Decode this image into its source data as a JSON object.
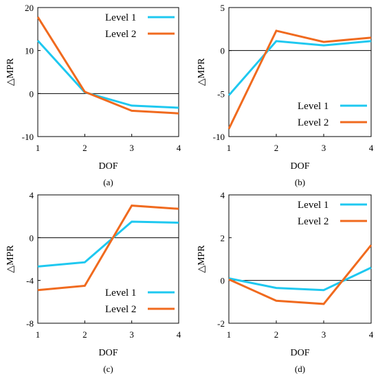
{
  "colors": {
    "level1": "#1ec8f0",
    "level2": "#f06a1e",
    "axis": "#000000"
  },
  "chart_data": [
    {
      "panel_label": "(a)",
      "type": "line",
      "x": [
        1,
        2,
        3,
        4
      ],
      "xlabel": "DOF",
      "ylabel": "△MPR",
      "ylim": [
        -10,
        20
      ],
      "yticks": [
        "-10",
        "0",
        "10",
        "20"
      ],
      "ytick_values": [
        -10,
        0,
        10,
        20
      ],
      "xticks": [
        "1",
        "2",
        "3",
        "4"
      ],
      "legend_position": "top-right",
      "series": [
        {
          "name": "Level 1",
          "values": [
            12.3,
            0.3,
            -2.8,
            -3.3
          ]
        },
        {
          "name": "Level 2",
          "values": [
            17.8,
            0.4,
            -4.0,
            -4.6
          ]
        }
      ]
    },
    {
      "panel_label": "(b)",
      "type": "line",
      "x": [
        1,
        2,
        3,
        4
      ],
      "xlabel": "DOF",
      "ylabel": "△MPR",
      "ylim": [
        -10,
        5
      ],
      "yticks": [
        "-10",
        "-5",
        "0",
        "5"
      ],
      "ytick_values": [
        -10,
        -5,
        0,
        5
      ],
      "xticks": [
        "1",
        "2",
        "3",
        "4"
      ],
      "legend_position": "bottom-right",
      "series": [
        {
          "name": "Level 1",
          "values": [
            -5.2,
            1.1,
            0.6,
            1.1
          ]
        },
        {
          "name": "Level 2",
          "values": [
            -9.1,
            2.3,
            1.0,
            1.5
          ]
        }
      ]
    },
    {
      "panel_label": "(c)",
      "type": "line",
      "x": [
        1,
        2,
        3,
        4
      ],
      "xlabel": "DOF",
      "ylabel": "△MPR",
      "ylim": [
        -8,
        4
      ],
      "yticks": [
        "-8",
        "-4",
        "0",
        "4"
      ],
      "ytick_values": [
        -8,
        -4,
        0,
        4
      ],
      "xticks": [
        "1",
        "2",
        "3",
        "4"
      ],
      "legend_position": "bottom-right",
      "series": [
        {
          "name": "Level 1",
          "values": [
            -2.7,
            -2.3,
            1.5,
            1.4
          ]
        },
        {
          "name": "Level 2",
          "values": [
            -4.9,
            -4.5,
            3.0,
            2.7
          ]
        }
      ]
    },
    {
      "panel_label": "(d)",
      "type": "line",
      "x": [
        1,
        2,
        3,
        4
      ],
      "xlabel": "DOF",
      "ylabel": "△MPR",
      "ylim": [
        -2,
        4
      ],
      "yticks": [
        "-2",
        "0",
        "2",
        "4"
      ],
      "ytick_values": [
        -2,
        0,
        2,
        4
      ],
      "xticks": [
        "1",
        "2",
        "3",
        "4"
      ],
      "legend_position": "top-right",
      "series": [
        {
          "name": "Level 1",
          "values": [
            0.1,
            -0.35,
            -0.45,
            0.6
          ]
        },
        {
          "name": "Level 2",
          "values": [
            0.05,
            -0.95,
            -1.1,
            1.65
          ]
        }
      ]
    }
  ]
}
